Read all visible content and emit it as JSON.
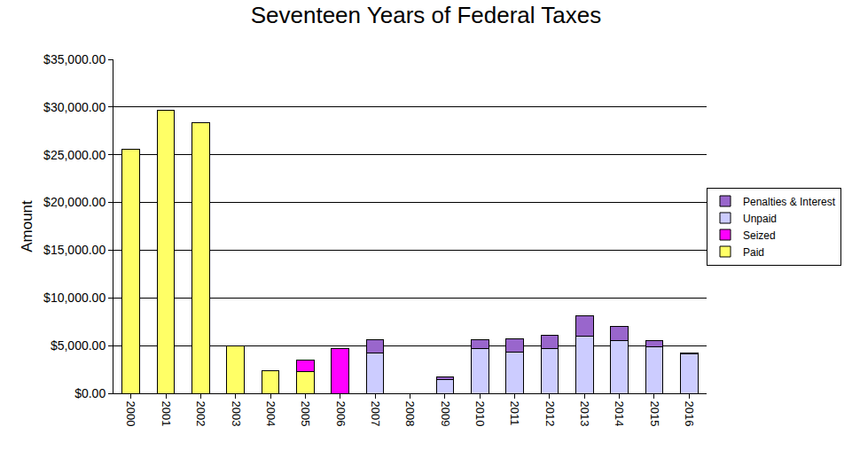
{
  "chart_data": {
    "type": "bar",
    "title": "Seventeen Years of Federal Taxes",
    "y_label": "Amount",
    "categories": [
      "2000",
      "2001",
      "2002",
      "2003",
      "2004",
      "2005",
      "2006",
      "2007",
      "2008",
      "2009",
      "2010",
      "2011",
      "2012",
      "2013",
      "2014",
      "2015",
      "2016"
    ],
    "series": [
      {
        "name": "Paid",
        "color": "#ffff66",
        "values": [
          25600,
          29700,
          28400,
          5000,
          2400,
          2300,
          0,
          0,
          0,
          0,
          0,
          0,
          0,
          0,
          0,
          0,
          0
        ]
      },
      {
        "name": "Seized",
        "color": "#ff00ff",
        "values": [
          0,
          0,
          0,
          0,
          0,
          1150,
          4650,
          0,
          0,
          0,
          0,
          0,
          0,
          0,
          0,
          0,
          0
        ]
      },
      {
        "name": "Unpaid",
        "color": "#ccccff",
        "values": [
          0,
          0,
          0,
          0,
          0,
          0,
          0,
          4200,
          0,
          1400,
          4650,
          4300,
          4650,
          5950,
          5550,
          4900,
          4100
        ]
      },
      {
        "name": "Penalties & Interest",
        "color": "#9966cc",
        "values": [
          0,
          0,
          0,
          0,
          0,
          0,
          0,
          1450,
          0,
          350,
          1000,
          1450,
          1450,
          2150,
          1500,
          650,
          150
        ]
      }
    ],
    "stacked": true,
    "ylim": [
      0,
      35000
    ],
    "yticks": [
      {
        "value": 0,
        "label": "$0.00"
      },
      {
        "value": 5000,
        "label": "$5,000.00"
      },
      {
        "value": 10000,
        "label": "$10,000.00"
      },
      {
        "value": 15000,
        "label": "$15,000.00"
      },
      {
        "value": 20000,
        "label": "$20,000.00"
      },
      {
        "value": 25000,
        "label": "$25,000.00"
      },
      {
        "value": 30000,
        "label": "$30,000.00"
      },
      {
        "value": 35000,
        "label": "$35,000.00"
      }
    ],
    "grid": true,
    "legend": "right"
  }
}
